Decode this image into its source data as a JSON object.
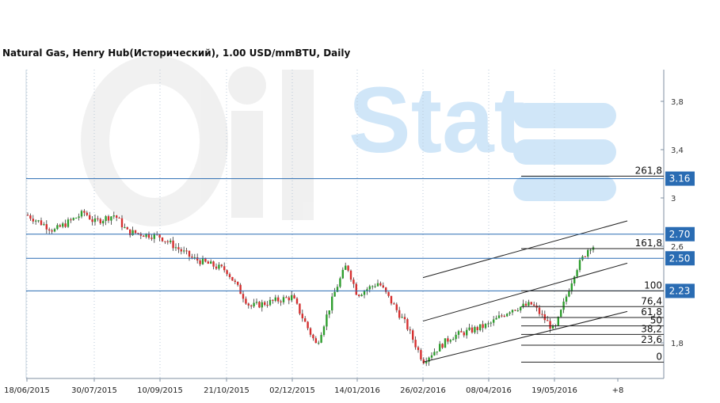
{
  "chart_data": {
    "type": "candlestick",
    "title": "Natural Gas, Henry Hub(Исторический), 1.00 USD/mmBTU, Daily",
    "watermark": "OilStat",
    "y_axis": {
      "ticks": [
        "3,8",
        "3,4",
        "3",
        "2,6",
        "1,8"
      ],
      "tick_values": [
        3.8,
        3.4,
        3.0,
        2.6,
        1.8
      ],
      "ylim": [
        1.6,
        4.0
      ],
      "side": "right"
    },
    "x_axis": {
      "ticks": [
        "18/06/2015",
        "30/07/2015",
        "10/09/2015",
        "21/10/2015",
        "02/12/2015",
        "14/01/2016",
        "26/02/2016",
        "08/04/2016",
        "19/05/2016",
        "+8"
      ]
    },
    "grid": "vertical dotted",
    "colors": {
      "up": "#2e9e2e",
      "down": "#d63030",
      "level_line": "#2a6cb3",
      "badge_bg": "#2a6cb3",
      "grid": "#b9c8d8"
    },
    "horizontal_levels": [
      {
        "label": "3.16",
        "value": 3.16
      },
      {
        "label": "2.70",
        "value": 2.7
      },
      {
        "label": "2.50",
        "value": 2.5
      },
      {
        "label": "2.23",
        "value": 2.23
      }
    ],
    "fibonacci_levels": [
      {
        "label": "261,8",
        "value": 3.18
      },
      {
        "label": "161,8",
        "value": 2.58
      },
      {
        "label": "100",
        "value": 2.23
      },
      {
        "label": "76,4",
        "value": 2.1
      },
      {
        "label": "61,8",
        "value": 2.01
      },
      {
        "label": "50",
        "value": 1.94
      },
      {
        "label": "38,2",
        "value": 1.87
      },
      {
        "label": "23,6",
        "value": 1.78
      },
      {
        "label": "0",
        "value": 1.64
      }
    ],
    "trend_channels": [
      {
        "name": "upper channel",
        "start": [
          "26/02/2016",
          2.34
        ],
        "end": [
          "+8",
          2.81
        ]
      },
      {
        "name": "middle channel",
        "start": [
          "26/02/2016",
          1.98
        ],
        "end": [
          "+8",
          2.46
        ]
      },
      {
        "name": "lower channel",
        "start": [
          "26/02/2016",
          1.64
        ],
        "end": [
          "+8",
          2.06
        ]
      }
    ],
    "ohlc_keyframes": [
      {
        "date": "18/06/2015",
        "close": 2.86
      },
      {
        "date": "05/07/2015",
        "close": 2.73
      },
      {
        "date": "24/07/2015",
        "close": 2.88
      },
      {
        "date": "30/07/2015",
        "close": 2.8
      },
      {
        "date": "12/08/2015",
        "close": 2.86
      },
      {
        "date": "20/08/2015",
        "close": 2.72
      },
      {
        "date": "10/09/2015",
        "close": 2.68
      },
      {
        "date": "30/09/2015",
        "close": 2.5
      },
      {
        "date": "21/10/2015",
        "close": 2.4
      },
      {
        "date": "05/11/2015",
        "close": 2.1
      },
      {
        "date": "02/12/2015",
        "close": 2.18
      },
      {
        "date": "18/12/2015",
        "close": 1.78
      },
      {
        "date": "31/12/2015",
        "close": 2.25
      },
      {
        "date": "07/01/2016",
        "close": 2.45
      },
      {
        "date": "14/01/2016",
        "close": 2.2
      },
      {
        "date": "28/01/2016",
        "close": 2.3
      },
      {
        "date": "15/02/2016",
        "close": 1.95
      },
      {
        "date": "26/02/2016",
        "close": 1.65
      },
      {
        "date": "15/03/2016",
        "close": 1.85
      },
      {
        "date": "08/04/2016",
        "close": 1.95
      },
      {
        "date": "22/04/2016",
        "close": 2.08
      },
      {
        "date": "05/05/2016",
        "close": 2.12
      },
      {
        "date": "19/05/2016",
        "close": 1.9
      },
      {
        "date": "01/06/2016",
        "close": 2.4
      },
      {
        "date": "10/06/2016",
        "close": 2.6
      }
    ]
  }
}
